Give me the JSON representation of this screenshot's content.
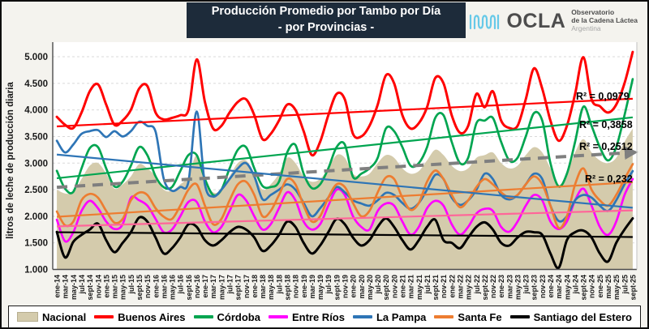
{
  "header": {
    "title_line1": "Producción Promedio por Tambo por Día",
    "title_line2": "- por Provincias -",
    "logo": {
      "brand": "OCLA",
      "subtitle_line1": "Observatorio",
      "subtitle_line2": "de la Cadena Láctea",
      "subtitle_line3": "Argentina"
    }
  },
  "chart_data": {
    "type": "line",
    "title": "Producción Promedio por Tambo por Día - por Provincias -",
    "xlabel": "",
    "ylabel": "litros de leche de producción diaria",
    "ylim": [
      1000,
      5000
    ],
    "y_ticks": [
      1000,
      1500,
      2000,
      2500,
      3000,
      3500,
      4000,
      4500,
      5000
    ],
    "grid": "horizontal-dashed",
    "legend_position": "bottom",
    "categories": [
      "ene-14",
      "mar-14",
      "may-14",
      "jul-14",
      "sept-14",
      "nov-14",
      "ene-15",
      "mar-15",
      "may-15",
      "jul-15",
      "sept-15",
      "nov-15",
      "ene-16",
      "mar-16",
      "may-16",
      "jul-16",
      "sept-16",
      "nov-16",
      "ene-17",
      "mar-17",
      "may-17",
      "jul-17",
      "sept-17",
      "nov-17",
      "ene-18",
      "mar-18",
      "may-18",
      "jul-18",
      "sept-18",
      "nov-18",
      "ene-19",
      "mar-19",
      "may-19",
      "jul-19",
      "sept-19",
      "nov-19",
      "ene-20",
      "mar-20",
      "may-20",
      "jul-20",
      "sept-20",
      "nov-20",
      "ene-21",
      "mar-21",
      "may-21",
      "jul-21",
      "sept-21",
      "nov-21",
      "ene-22",
      "mar-22",
      "may-22",
      "jul-22",
      "sept-22",
      "nov-22",
      "ene-23",
      "mar-23",
      "may-23",
      "jul-23",
      "sept-23",
      "nov-23",
      "ene-24",
      "mar-24",
      "may-24",
      "jul-24",
      "sept-24",
      "nov-24",
      "ene-25",
      "mar-25",
      "may-25",
      "jul-25",
      "sept-25"
    ],
    "series": [
      {
        "name": "Nacional",
        "type": "area",
        "color": "#D4CBAC",
        "values": [
          2500,
          2430,
          2450,
          2700,
          2950,
          3000,
          2800,
          2520,
          2600,
          2750,
          2980,
          2900,
          2750,
          2500,
          2480,
          2600,
          2750,
          3150,
          2700,
          2450,
          2500,
          2750,
          3000,
          3050,
          2800,
          2500,
          2600,
          2800,
          3100,
          3000,
          2750,
          2650,
          2700,
          2900,
          3150,
          3100,
          2800,
          2750,
          2800,
          3000,
          3150,
          3100,
          2900,
          2800,
          2850,
          3050,
          3250,
          3150,
          2950,
          2850,
          2900,
          3100,
          3150,
          3200,
          3000,
          2900,
          2950,
          3150,
          3300,
          3200,
          2900,
          2590,
          2800,
          3200,
          3450,
          3200,
          3050,
          3000,
          3100,
          3400,
          3650
        ]
      },
      {
        "name": "Buenos Aires",
        "type": "line",
        "color": "#FF0000",
        "values": [
          3870,
          3720,
          3660,
          3950,
          4350,
          4480,
          4100,
          3720,
          3800,
          4000,
          4400,
          4450,
          3950,
          3820,
          3850,
          3900,
          4000,
          4950,
          4150,
          3650,
          3700,
          3950,
          4150,
          4200,
          3900,
          3450,
          3550,
          3800,
          4100,
          4000,
          3600,
          3150,
          3400,
          3900,
          4300,
          4200,
          3550,
          3500,
          3700,
          4100,
          4650,
          4500,
          3900,
          3650,
          3750,
          4050,
          4600,
          4500,
          3900,
          3570,
          3700,
          4300,
          4050,
          4350,
          3800,
          3660,
          3700,
          4200,
          4780,
          4400,
          3800,
          3420,
          3700,
          4300,
          4990,
          4200,
          4070,
          3950,
          4100,
          4500,
          5090
        ]
      },
      {
        "name": "Córdoba",
        "type": "line",
        "color": "#00A550",
        "values": [
          2855,
          2520,
          2460,
          2900,
          3280,
          3300,
          2900,
          2560,
          2650,
          2950,
          3300,
          3150,
          2750,
          2545,
          2550,
          2850,
          3150,
          3150,
          2700,
          2400,
          2500,
          2900,
          3250,
          3300,
          2900,
          2570,
          2550,
          2650,
          3200,
          3340,
          2800,
          2530,
          2600,
          2900,
          3300,
          3350,
          2740,
          2800,
          2900,
          3100,
          3650,
          3600,
          3300,
          2950,
          3000,
          3300,
          3850,
          3900,
          3400,
          3000,
          3100,
          3750,
          3800,
          3850,
          3400,
          3050,
          3100,
          3500,
          3940,
          3800,
          3000,
          2560,
          2800,
          3400,
          4060,
          3700,
          3300,
          3050,
          3300,
          3900,
          4580
        ]
      },
      {
        "name": "Entre Ríos",
        "type": "line",
        "color": "#FF00FF",
        "values": [
          1935,
          1530,
          1700,
          2100,
          2290,
          2150,
          1900,
          1760,
          1850,
          2345,
          2300,
          2200,
          1950,
          1700,
          1750,
          2000,
          2270,
          2270,
          1900,
          1700,
          1800,
          2100,
          2400,
          2300,
          2000,
          1750,
          1850,
          2150,
          2450,
          2300,
          1900,
          1750,
          1850,
          2200,
          2500,
          2400,
          2000,
          1800,
          1750,
          2100,
          2240,
          2200,
          1900,
          1655,
          1800,
          2150,
          2290,
          2200,
          1850,
          1655,
          1800,
          2050,
          2140,
          2100,
          1800,
          1710,
          1900,
          2200,
          2400,
          2300,
          1900,
          1760,
          1900,
          2300,
          2520,
          2200,
          1800,
          1650,
          1900,
          2400,
          2700
        ]
      },
      {
        "name": "La Pampa",
        "type": "line",
        "color": "#2E75B6",
        "values": [
          3420,
          3200,
          3350,
          3550,
          3600,
          3620,
          3490,
          3600,
          3500,
          3600,
          3780,
          3700,
          3590,
          2700,
          2480,
          2550,
          2650,
          3970,
          2600,
          2370,
          2500,
          2700,
          2900,
          3000,
          2750,
          2320,
          2400,
          2500,
          2600,
          2500,
          2250,
          2000,
          2150,
          2350,
          2550,
          2450,
          2300,
          2240,
          2200,
          2300,
          2440,
          2400,
          2250,
          2140,
          2250,
          2500,
          2780,
          2700,
          2350,
          2215,
          2300,
          2500,
          2800,
          2700,
          2400,
          2315,
          2400,
          2600,
          2800,
          2700,
          2200,
          1910,
          2000,
          2300,
          2400,
          2350,
          2200,
          2100,
          2300,
          2600,
          2850
        ]
      },
      {
        "name": "Santa Fe",
        "type": "line",
        "color": "#ED7D31",
        "values": [
          2090,
          1830,
          1900,
          2300,
          2420,
          2350,
          2100,
          1880,
          1950,
          2300,
          2445,
          2400,
          2150,
          1990,
          1950,
          2200,
          2500,
          2600,
          2200,
          1850,
          1950,
          2300,
          2600,
          2650,
          2400,
          2000,
          2100,
          2400,
          2700,
          2600,
          2200,
          1900,
          2000,
          2350,
          2600,
          2550,
          2250,
          2000,
          2100,
          2450,
          2730,
          2700,
          2350,
          2120,
          2250,
          2650,
          2860,
          2700,
          2400,
          2170,
          2300,
          2550,
          2700,
          2600,
          2450,
          2350,
          2400,
          2600,
          2750,
          2600,
          2200,
          1780,
          2000,
          2600,
          2900,
          2500,
          2300,
          2200,
          2400,
          2700,
          2980
        ]
      },
      {
        "name": "Santiago del Estero",
        "type": "line",
        "color": "#000000",
        "values": [
          1705,
          1225,
          1520,
          1650,
          1750,
          1860,
          1550,
          1325,
          1500,
          1700,
          1975,
          1900,
          1600,
          1300,
          1400,
          1600,
          1850,
          1800,
          1550,
          1450,
          1550,
          1700,
          1800,
          1750,
          1600,
          1350,
          1450,
          1650,
          1900,
          1800,
          1500,
          1300,
          1450,
          1700,
          1950,
          1850,
          1600,
          1450,
          1550,
          1800,
          1960,
          1800,
          1550,
          1375,
          1550,
          1800,
          1935,
          1550,
          1500,
          1400,
          1600,
          1800,
          1885,
          1750,
          1500,
          1450,
          1600,
          1705,
          1700,
          1650,
          1300,
          1030,
          1550,
          1700,
          1730,
          1600,
          1300,
          1150,
          1500,
          1750,
          1960
        ]
      }
    ],
    "trendlines": [
      {
        "series": "Buenos Aires",
        "color": "#FF0000",
        "style": "solid",
        "start": 3690,
        "end": 4210,
        "r2_label": "R² = 0,0979"
      },
      {
        "series": "Córdoba",
        "color": "#00A550",
        "style": "solid",
        "start": 2715,
        "end": 3860,
        "r2_label": "R² = 0,3858"
      },
      {
        "series": "Nacional",
        "color": "#7F7F7F",
        "style": "dashed-arrow",
        "start": 2545,
        "end": 3200,
        "r2_label": "R² = 0,2512"
      },
      {
        "series": "Santa Fe",
        "color": "#ED7D31",
        "style": "solid",
        "start": 1990,
        "end": 2640,
        "r2_label": "R² = 0,232"
      },
      {
        "series": "La Pampa",
        "color": "#2E75B6",
        "style": "solid",
        "start": 3160,
        "end": 2160
      },
      {
        "series": "Entre Ríos",
        "color": "#FF6699",
        "style": "solid",
        "start": 1810,
        "end": 2110
      },
      {
        "series": "Santiago del Estero",
        "color": "#000000",
        "style": "solid",
        "start": 1700,
        "end": 1610
      }
    ],
    "legend": [
      {
        "label": "Nacional",
        "swatch": "area",
        "color": "#D4CBAC"
      },
      {
        "label": "Buenos Aires",
        "swatch": "line",
        "color": "#FF0000"
      },
      {
        "label": "Córdoba",
        "swatch": "line",
        "color": "#00A550"
      },
      {
        "label": "Entre Ríos",
        "swatch": "line",
        "color": "#FF00FF"
      },
      {
        "label": "La Pampa",
        "swatch": "line",
        "color": "#2E75B6"
      },
      {
        "label": "Santa Fe",
        "swatch": "line",
        "color": "#ED7D31"
      },
      {
        "label": "Santiago del Estero",
        "swatch": "line",
        "color": "#000000"
      }
    ]
  }
}
